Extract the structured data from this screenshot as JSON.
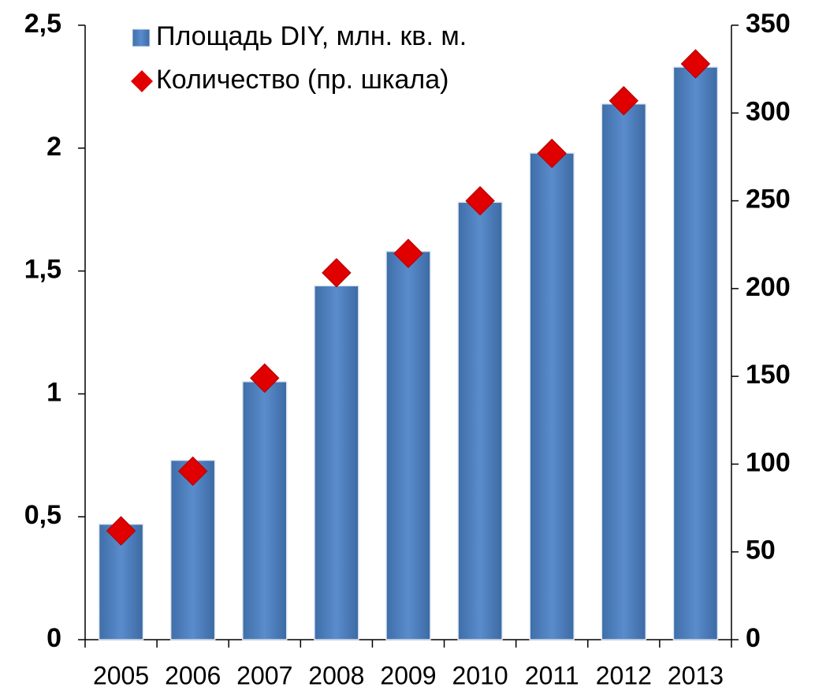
{
  "chart_data": {
    "type": "bar",
    "categories": [
      "2005",
      "2006",
      "2007",
      "2008",
      "2009",
      "2010",
      "2011",
      "2012",
      "2013"
    ],
    "series": [
      {
        "name": "Площадь DIY, млн. кв. м.",
        "type": "bar",
        "color": "#4f81bd",
        "values": [
          0.47,
          0.73,
          1.05,
          1.44,
          1.58,
          1.78,
          1.98,
          2.18,
          2.33
        ]
      },
      {
        "name": "Количество (пр. шкала)",
        "type": "scatter",
        "marker": "diamond",
        "color": "#e00000",
        "axis": "y2",
        "values": [
          62,
          96,
          149,
          209,
          220,
          250,
          277,
          307,
          328
        ]
      }
    ],
    "ylim": [
      0,
      2.5
    ],
    "yticks": [
      0,
      {
        "value": 0.5,
        "label": "0,5"
      },
      1,
      {
        "value": 1.5,
        "label": "1,5"
      },
      2,
      {
        "value": 2.5,
        "label": "2,5"
      }
    ],
    "y2lim": [
      0,
      350
    ],
    "y2ticks": [
      0,
      50,
      100,
      150,
      200,
      250,
      300,
      350
    ],
    "grid": false,
    "legend": "top-left"
  }
}
